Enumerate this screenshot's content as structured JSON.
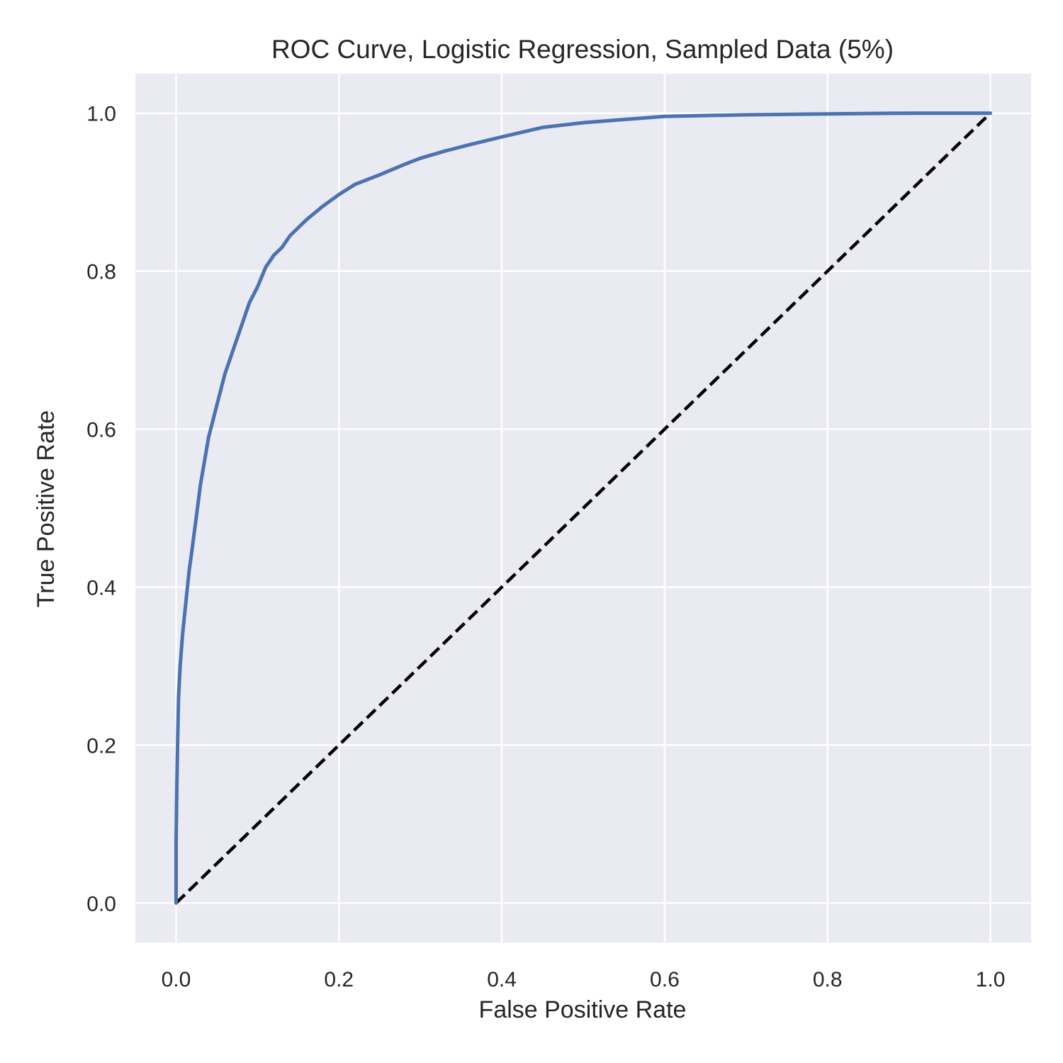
{
  "chart_data": {
    "type": "line",
    "title": "ROC Curve, Logistic Regression, Sampled Data (5%)",
    "xlabel": "False Positive Rate",
    "ylabel": "True Positive Rate",
    "xlim": [
      -0.05,
      1.05
    ],
    "ylim": [
      -0.05,
      1.05
    ],
    "grid": true,
    "xticks": [
      0.0,
      0.2,
      0.4,
      0.6,
      0.8,
      1.0
    ],
    "yticks": [
      0.0,
      0.2,
      0.4,
      0.6,
      0.8,
      1.0
    ],
    "xtick_labels": [
      "0.0",
      "0.2",
      "0.4",
      "0.6",
      "0.8",
      "1.0"
    ],
    "ytick_labels": [
      "0.0",
      "0.2",
      "0.4",
      "0.6",
      "0.8",
      "1.0"
    ],
    "background_color": "#eaeaf2",
    "grid_color": "#ffffff",
    "series": [
      {
        "color": "#4c72b0",
        "style": "solid",
        "x": [
          0.0,
          0.0,
          0.001,
          0.002,
          0.003,
          0.005,
          0.008,
          0.012,
          0.016,
          0.02,
          0.025,
          0.03,
          0.035,
          0.04,
          0.045,
          0.05,
          0.06,
          0.07,
          0.08,
          0.09,
          0.1,
          0.11,
          0.12,
          0.13,
          0.14,
          0.16,
          0.18,
          0.2,
          0.22,
          0.25,
          0.28,
          0.3,
          0.33,
          0.36,
          0.4,
          0.45,
          0.5,
          0.55,
          0.6,
          0.7,
          0.8,
          0.9,
          1.0
        ],
        "y": [
          0.0,
          0.08,
          0.15,
          0.21,
          0.26,
          0.3,
          0.34,
          0.38,
          0.42,
          0.45,
          0.49,
          0.53,
          0.56,
          0.59,
          0.61,
          0.63,
          0.67,
          0.7,
          0.73,
          0.76,
          0.78,
          0.805,
          0.82,
          0.83,
          0.845,
          0.865,
          0.882,
          0.897,
          0.91,
          0.922,
          0.935,
          0.943,
          0.952,
          0.96,
          0.97,
          0.982,
          0.988,
          0.992,
          0.996,
          0.998,
          0.999,
          1.0,
          1.0
        ]
      },
      {
        "color": "#000000",
        "style": "dashed",
        "x": [
          0.0,
          1.0
        ],
        "y": [
          0.0,
          1.0
        ]
      }
    ]
  }
}
